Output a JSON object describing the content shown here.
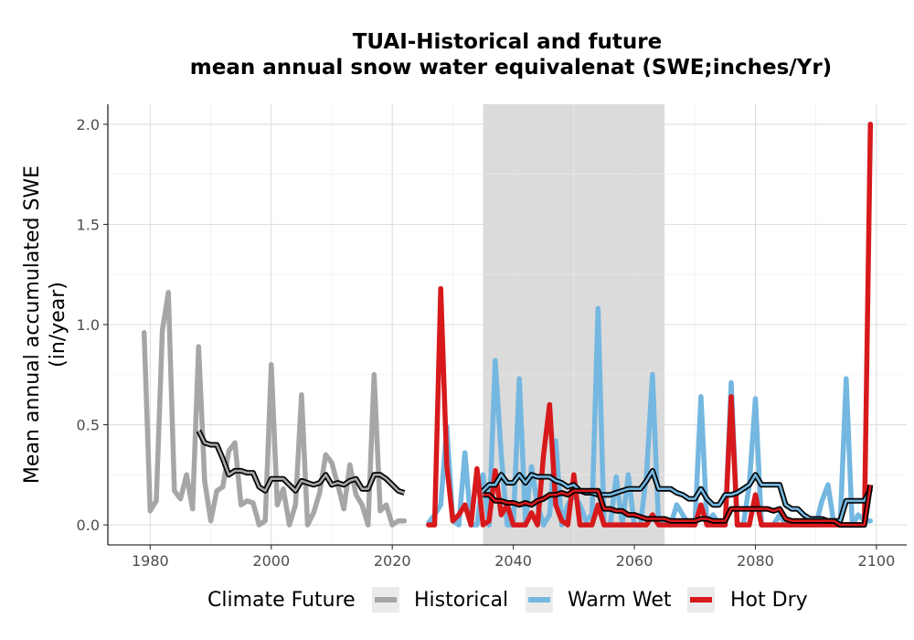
{
  "chart_data": {
    "type": "line",
    "title_lines": [
      "TUAI-Historical and future",
      "mean annual snow water equivalenat (SWE;inches/Yr)"
    ],
    "xlabel": "",
    "ylabel_lines": [
      "Mean annual accumulated SWE",
      "(in/year)"
    ],
    "xlim": [
      1973,
      2105
    ],
    "ylim": [
      -0.1,
      2.1
    ],
    "x_ticks": [
      1980,
      2000,
      2020,
      2040,
      2060,
      2080,
      2100
    ],
    "y_ticks": [
      0.0,
      0.5,
      1.0,
      1.5,
      2.0
    ],
    "y_tick_labels": [
      "0.0",
      "0.5",
      "1.0",
      "1.5",
      "2.0"
    ],
    "grid": true,
    "shaded_period": [
      2035,
      2065
    ],
    "legend": {
      "title": "Climate Future",
      "position": "bottom"
    },
    "series": [
      {
        "name": "Historical",
        "color": "#a6a6a6",
        "x": [
          1979,
          1980,
          1981,
          1982,
          1983,
          1984,
          1985,
          1986,
          1987,
          1988,
          1989,
          1990,
          1991,
          1992,
          1993,
          1994,
          1995,
          1996,
          1997,
          1998,
          1999,
          2000,
          2001,
          2002,
          2003,
          2004,
          2005,
          2006,
          2007,
          2008,
          2009,
          2010,
          2011,
          2012,
          2013,
          2014,
          2015,
          2016,
          2017,
          2018,
          2019,
          2020,
          2021,
          2022
        ],
        "values": [
          0.96,
          0.07,
          0.12,
          0.97,
          1.16,
          0.17,
          0.13,
          0.25,
          0.08,
          0.89,
          0.22,
          0.02,
          0.17,
          0.19,
          0.37,
          0.41,
          0.1,
          0.12,
          0.11,
          0.0,
          0.02,
          0.8,
          0.1,
          0.18,
          0.0,
          0.1,
          0.65,
          0.0,
          0.06,
          0.16,
          0.35,
          0.31,
          0.2,
          0.08,
          0.3,
          0.15,
          0.1,
          0.0,
          0.75,
          0.07,
          0.1,
          0.0,
          0.02,
          0.02
        ]
      },
      {
        "name": "Warm Wet",
        "color": "#74b7e0",
        "x": [
          2026,
          2027,
          2028,
          2029,
          2030,
          2031,
          2032,
          2033,
          2034,
          2035,
          2036,
          2037,
          2038,
          2039,
          2040,
          2041,
          2042,
          2043,
          2044,
          2045,
          2046,
          2047,
          2048,
          2049,
          2050,
          2051,
          2052,
          2053,
          2054,
          2055,
          2056,
          2057,
          2058,
          2059,
          2060,
          2061,
          2062,
          2063,
          2064,
          2065,
          2066,
          2067,
          2068,
          2069,
          2070,
          2071,
          2072,
          2073,
          2074,
          2075,
          2076,
          2077,
          2078,
          2079,
          2080,
          2081,
          2082,
          2083,
          2084,
          2085,
          2086,
          2087,
          2088,
          2089,
          2090,
          2091,
          2092,
          2093,
          2094,
          2095,
          2096,
          2097,
          2098,
          2099
        ],
        "values": [
          0.01,
          0.05,
          0.1,
          0.49,
          0.02,
          0.0,
          0.36,
          0.0,
          0.0,
          0.25,
          0.0,
          0.82,
          0.35,
          0.0,
          0.0,
          0.73,
          0.02,
          0.29,
          0.1,
          0.0,
          0.05,
          0.42,
          0.0,
          0.1,
          0.15,
          0.1,
          0.02,
          0.05,
          1.08,
          0.0,
          0.0,
          0.24,
          0.0,
          0.25,
          0.0,
          0.0,
          0.25,
          0.75,
          0.0,
          0.02,
          0.0,
          0.1,
          0.05,
          0.0,
          0.0,
          0.64,
          0.0,
          0.05,
          0.0,
          0.0,
          0.71,
          0.0,
          0.0,
          0.2,
          0.63,
          0.0,
          0.0,
          0.0,
          0.05,
          0.0,
          0.0,
          0.02,
          0.0,
          0.0,
          0.0,
          0.12,
          0.2,
          0.0,
          0.0,
          0.73,
          0.0,
          0.05,
          0.02,
          0.02
        ]
      },
      {
        "name": "Hot Dry",
        "color": "#d7191c",
        "x": [
          2026,
          2027,
          2028,
          2029,
          2030,
          2031,
          2032,
          2033,
          2034,
          2035,
          2036,
          2037,
          2038,
          2039,
          2040,
          2041,
          2042,
          2043,
          2044,
          2045,
          2046,
          2047,
          2048,
          2049,
          2050,
          2051,
          2052,
          2053,
          2054,
          2055,
          2056,
          2057,
          2058,
          2059,
          2060,
          2061,
          2062,
          2063,
          2064,
          2065,
          2066,
          2067,
          2068,
          2069,
          2070,
          2071,
          2072,
          2073,
          2074,
          2075,
          2076,
          2077,
          2078,
          2079,
          2080,
          2081,
          2082,
          2083,
          2084,
          2085,
          2086,
          2087,
          2088,
          2089,
          2090,
          2091,
          2092,
          2093,
          2094,
          2095,
          2096,
          2097,
          2098,
          2099
        ],
        "values": [
          0.0,
          0.0,
          1.18,
          0.3,
          0.02,
          0.05,
          0.1,
          0.0,
          0.28,
          0.0,
          0.02,
          0.27,
          0.05,
          0.1,
          0.0,
          0.0,
          0.0,
          0.06,
          0.0,
          0.35,
          0.6,
          0.1,
          0.02,
          0.0,
          0.25,
          0.0,
          0.0,
          0.0,
          0.1,
          0.0,
          0.0,
          0.0,
          0.0,
          0.0,
          0.0,
          0.0,
          0.0,
          0.05,
          0.0,
          0.0,
          0.0,
          0.0,
          0.0,
          0.0,
          0.0,
          0.1,
          0.0,
          0.0,
          0.0,
          0.0,
          0.64,
          0.0,
          0.0,
          0.0,
          0.15,
          0.0,
          0.0,
          0.0,
          0.0,
          0.0,
          0.0,
          0.0,
          0.0,
          0.0,
          0.0,
          0.0,
          0.0,
          0.0,
          0.0,
          0.0,
          0.0,
          0.0,
          0.0,
          2.0
        ]
      }
    ],
    "smoothed_series": [
      {
        "name": "Historical",
        "color": "#a6a6a6",
        "x": [
          1988,
          1989,
          1990,
          1991,
          1992,
          1993,
          1994,
          1995,
          1996,
          1997,
          1998,
          1999,
          2000,
          2001,
          2002,
          2003,
          2004,
          2005,
          2006,
          2007,
          2008,
          2009,
          2010,
          2011,
          2012,
          2013,
          2014,
          2015,
          2016,
          2017,
          2018,
          2019,
          2020,
          2021,
          2022
        ],
        "values": [
          0.47,
          0.41,
          0.4,
          0.4,
          0.33,
          0.25,
          0.27,
          0.27,
          0.26,
          0.26,
          0.19,
          0.17,
          0.23,
          0.23,
          0.23,
          0.2,
          0.17,
          0.22,
          0.21,
          0.2,
          0.21,
          0.25,
          0.2,
          0.21,
          0.2,
          0.22,
          0.23,
          0.18,
          0.18,
          0.25,
          0.25,
          0.23,
          0.2,
          0.17,
          0.16
        ]
      },
      {
        "name": "Warm Wet",
        "color": "#74b7e0",
        "x": [
          2035,
          2036,
          2037,
          2038,
          2039,
          2040,
          2041,
          2042,
          2043,
          2044,
          2045,
          2046,
          2047,
          2048,
          2049,
          2050,
          2051,
          2052,
          2053,
          2054,
          2055,
          2056,
          2057,
          2058,
          2059,
          2060,
          2061,
          2062,
          2063,
          2064,
          2065,
          2066,
          2067,
          2068,
          2069,
          2070,
          2071,
          2072,
          2073,
          2074,
          2075,
          2076,
          2077,
          2078,
          2079,
          2080,
          2081,
          2082,
          2083,
          2084,
          2085,
          2086,
          2087,
          2088,
          2089,
          2090,
          2091,
          2092,
          2093,
          2094,
          2095,
          2096,
          2097,
          2098,
          2099
        ],
        "values": [
          0.17,
          0.2,
          0.2,
          0.25,
          0.21,
          0.21,
          0.25,
          0.21,
          0.25,
          0.24,
          0.24,
          0.24,
          0.22,
          0.21,
          0.19,
          0.2,
          0.17,
          0.16,
          0.16,
          0.15,
          0.15,
          0.15,
          0.16,
          0.17,
          0.18,
          0.18,
          0.18,
          0.22,
          0.27,
          0.18,
          0.18,
          0.18,
          0.16,
          0.15,
          0.13,
          0.13,
          0.18,
          0.13,
          0.1,
          0.1,
          0.15,
          0.15,
          0.16,
          0.18,
          0.2,
          0.25,
          0.2,
          0.2,
          0.2,
          0.2,
          0.1,
          0.08,
          0.08,
          0.05,
          0.03,
          0.03,
          0.03,
          0.02,
          0.02,
          0.02,
          0.12,
          0.12,
          0.12,
          0.12,
          0.18
        ]
      },
      {
        "name": "Hot Dry",
        "color": "#d7191c",
        "x": [
          2035,
          2036,
          2037,
          2038,
          2039,
          2040,
          2041,
          2042,
          2043,
          2044,
          2045,
          2046,
          2047,
          2048,
          2049,
          2050,
          2051,
          2052,
          2053,
          2054,
          2055,
          2056,
          2057,
          2058,
          2059,
          2060,
          2061,
          2062,
          2063,
          2064,
          2065,
          2066,
          2067,
          2068,
          2069,
          2070,
          2071,
          2072,
          2073,
          2074,
          2075,
          2076,
          2077,
          2078,
          2079,
          2080,
          2081,
          2082,
          2083,
          2084,
          2085,
          2086,
          2087,
          2088,
          2089,
          2090,
          2091,
          2092,
          2093,
          2094,
          2095,
          2096,
          2097,
          2098,
          2099
        ],
        "values": [
          0.15,
          0.15,
          0.12,
          0.12,
          0.11,
          0.11,
          0.1,
          0.11,
          0.1,
          0.12,
          0.13,
          0.15,
          0.15,
          0.16,
          0.15,
          0.17,
          0.17,
          0.17,
          0.17,
          0.17,
          0.08,
          0.08,
          0.07,
          0.07,
          0.05,
          0.05,
          0.04,
          0.03,
          0.03,
          0.03,
          0.03,
          0.02,
          0.02,
          0.02,
          0.02,
          0.02,
          0.03,
          0.03,
          0.02,
          0.02,
          0.02,
          0.08,
          0.08,
          0.08,
          0.08,
          0.08,
          0.08,
          0.08,
          0.07,
          0.08,
          0.03,
          0.02,
          0.02,
          0.02,
          0.02,
          0.02,
          0.02,
          0.02,
          0.02,
          0.0,
          0.0,
          0.0,
          0.0,
          0.0,
          0.2
        ]
      }
    ]
  }
}
